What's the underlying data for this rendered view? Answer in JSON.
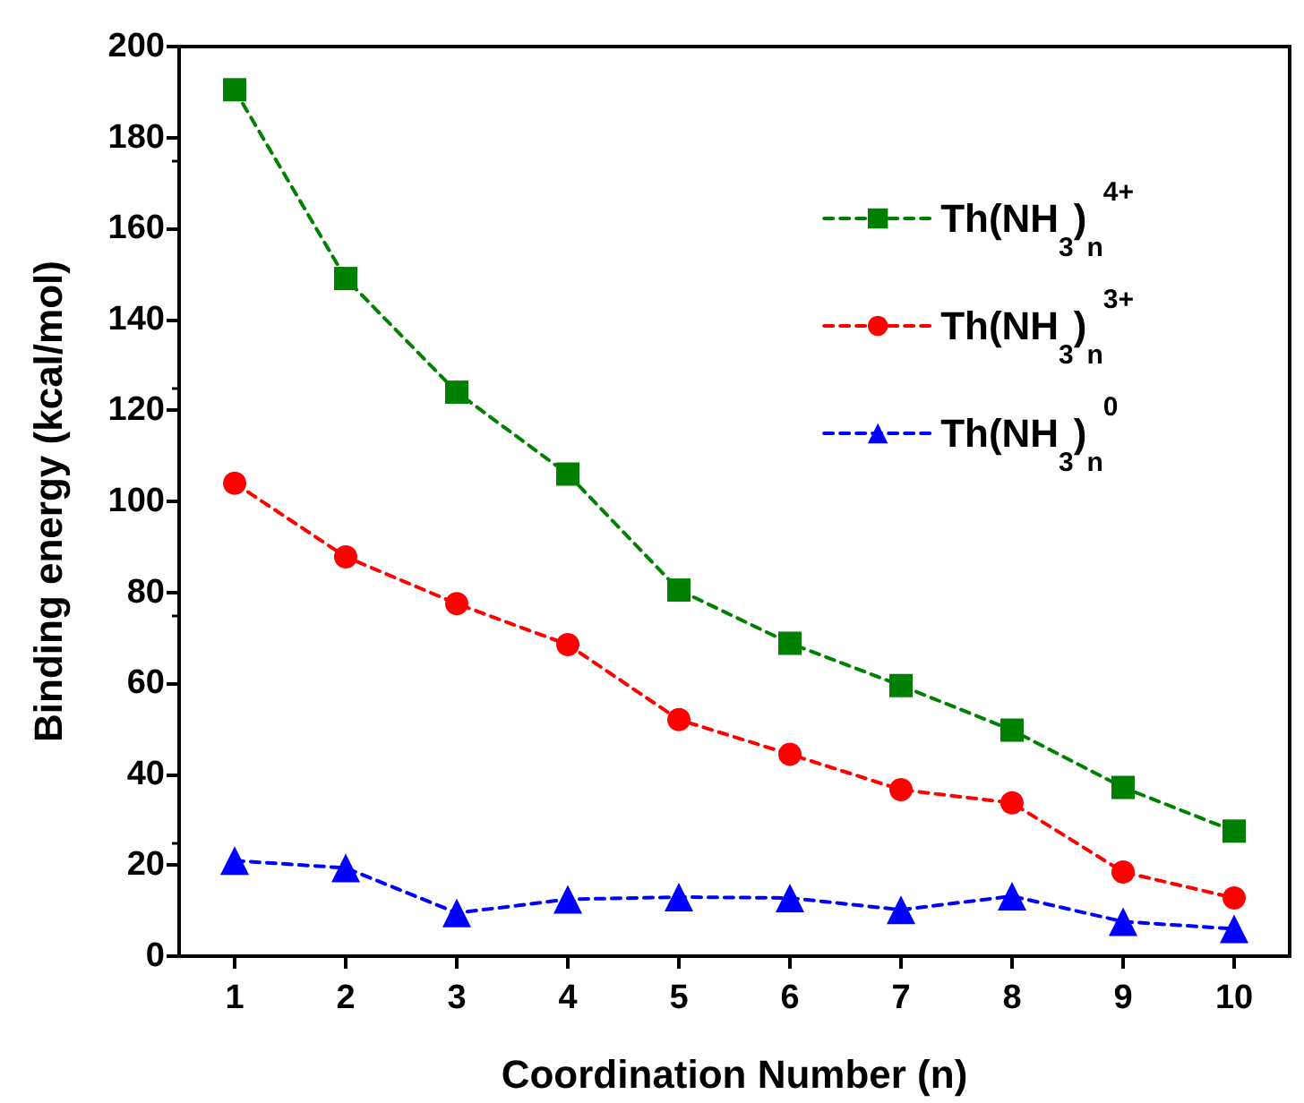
{
  "chart_data": {
    "type": "line",
    "xlabel": "Coordination Number (n)",
    "ylabel": "Binding energy (kcal/mol)",
    "x": [
      1,
      2,
      3,
      4,
      5,
      6,
      7,
      8,
      9,
      10
    ],
    "xlim": [
      0.5,
      10.5
    ],
    "xticks": [
      1,
      2,
      3,
      4,
      5,
      6,
      7,
      8,
      9,
      10
    ],
    "ylim": [
      0,
      200
    ],
    "yticks": [
      0,
      20,
      40,
      60,
      80,
      100,
      120,
      140,
      160,
      180,
      200
    ],
    "grid": false,
    "legend": "top right",
    "line_style": "dashed",
    "series": [
      {
        "name": "Th(NH$_{3}$)$_{n}$$^{4+}$",
        "color": "#008000",
        "marker": "square",
        "values": [
          190.5,
          149,
          124,
          106,
          80.5,
          68.8,
          59.5,
          49.7,
          37.1,
          27.5
        ]
      },
      {
        "name": "Th(NH$_{3}$)$_{n}$$^{3+}$",
        "color": "#ff0000",
        "marker": "circle",
        "values": [
          104,
          87.8,
          77.5,
          68.5,
          52,
          44.4,
          36.6,
          33.7,
          18.5,
          12.8
        ]
      },
      {
        "name": "Th(NH$_{3}$)$_{n}$$^{0}$",
        "color": "#0000ff",
        "marker": "triangle",
        "values": [
          21,
          19.4,
          9.5,
          12.5,
          13,
          12.8,
          10.2,
          13.2,
          7.6,
          6.0
        ]
      }
    ]
  }
}
